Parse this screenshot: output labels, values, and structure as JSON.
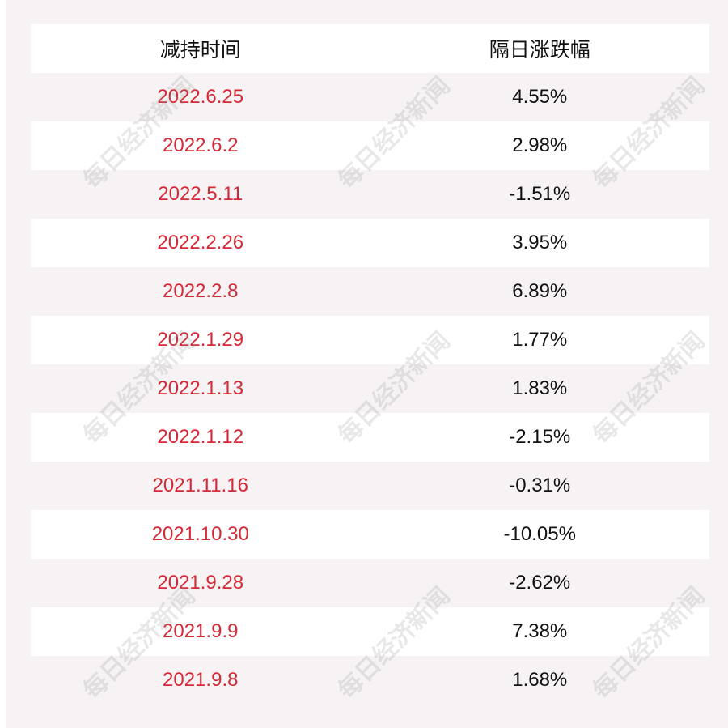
{
  "watermark": "每日经济新闻",
  "colors": {
    "date": "#d42a37",
    "value": "#111111",
    "stripe": "#f7f3f4"
  },
  "header": {
    "col1": "减持时间",
    "col2": "隔日涨跌幅"
  },
  "rows": [
    {
      "date": "2022.6.25",
      "change": "4.55%"
    },
    {
      "date": "2022.6.2",
      "change": "2.98%"
    },
    {
      "date": "2022.5.11",
      "change": "-1.51%"
    },
    {
      "date": "2022.2.26",
      "change": "3.95%"
    },
    {
      "date": "2022.2.8",
      "change": "6.89%"
    },
    {
      "date": "2022.1.29",
      "change": "1.77%"
    },
    {
      "date": "2022.1.13",
      "change": "1.83%"
    },
    {
      "date": "2022.1.12",
      "change": "-2.15%"
    },
    {
      "date": "2021.11.16",
      "change": "-0.31%"
    },
    {
      "date": "2021.10.30",
      "change": "-10.05%"
    },
    {
      "date": "2021.9.28",
      "change": "-2.62%"
    },
    {
      "date": "2021.9.9",
      "change": "7.38%"
    },
    {
      "date": "2021.9.8",
      "change": "1.68%"
    }
  ]
}
